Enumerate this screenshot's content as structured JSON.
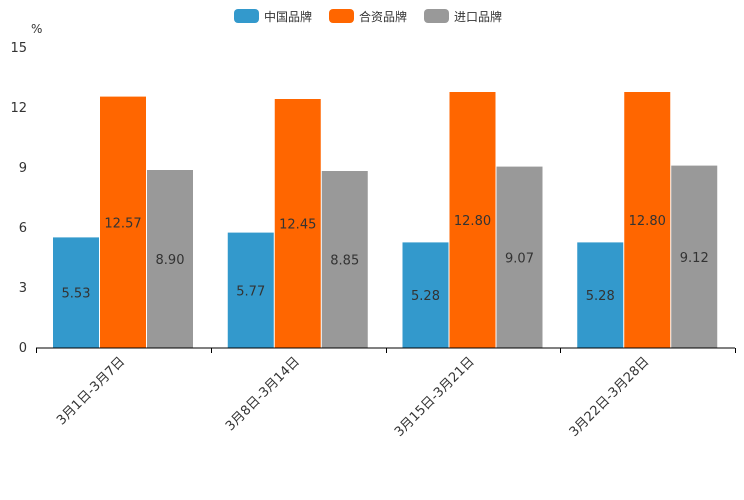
{
  "chart_data": {
    "type": "bar",
    "title": "",
    "unit_label": "%",
    "xlabel": "",
    "ylabel": "%",
    "ylim": [
      0,
      15
    ],
    "yticks": [
      0,
      3,
      6,
      9,
      12,
      15
    ],
    "grid": false,
    "legend_position": "top-center",
    "categories": [
      "3月1日-3月7日",
      "3月8日-3月14日",
      "3月15日-3月21日",
      "3月22日-3月28日"
    ],
    "series": [
      {
        "name": "中国品牌",
        "color": "#3399cc",
        "values": [
          5.53,
          5.77,
          5.28,
          5.28
        ],
        "labels": [
          "5.53",
          "5.77",
          "5.28",
          "5.28"
        ]
      },
      {
        "name": "合资品牌",
        "color": "#ff6600",
        "values": [
          12.57,
          12.45,
          12.8,
          12.8
        ],
        "labels": [
          "12.57",
          "12.45",
          "12.80",
          "12.80"
        ]
      },
      {
        "name": "进口品牌",
        "color": "#999999",
        "values": [
          8.9,
          8.85,
          9.07,
          9.12
        ],
        "labels": [
          "8.90",
          "8.85",
          "9.07",
          "9.12"
        ]
      }
    ]
  }
}
